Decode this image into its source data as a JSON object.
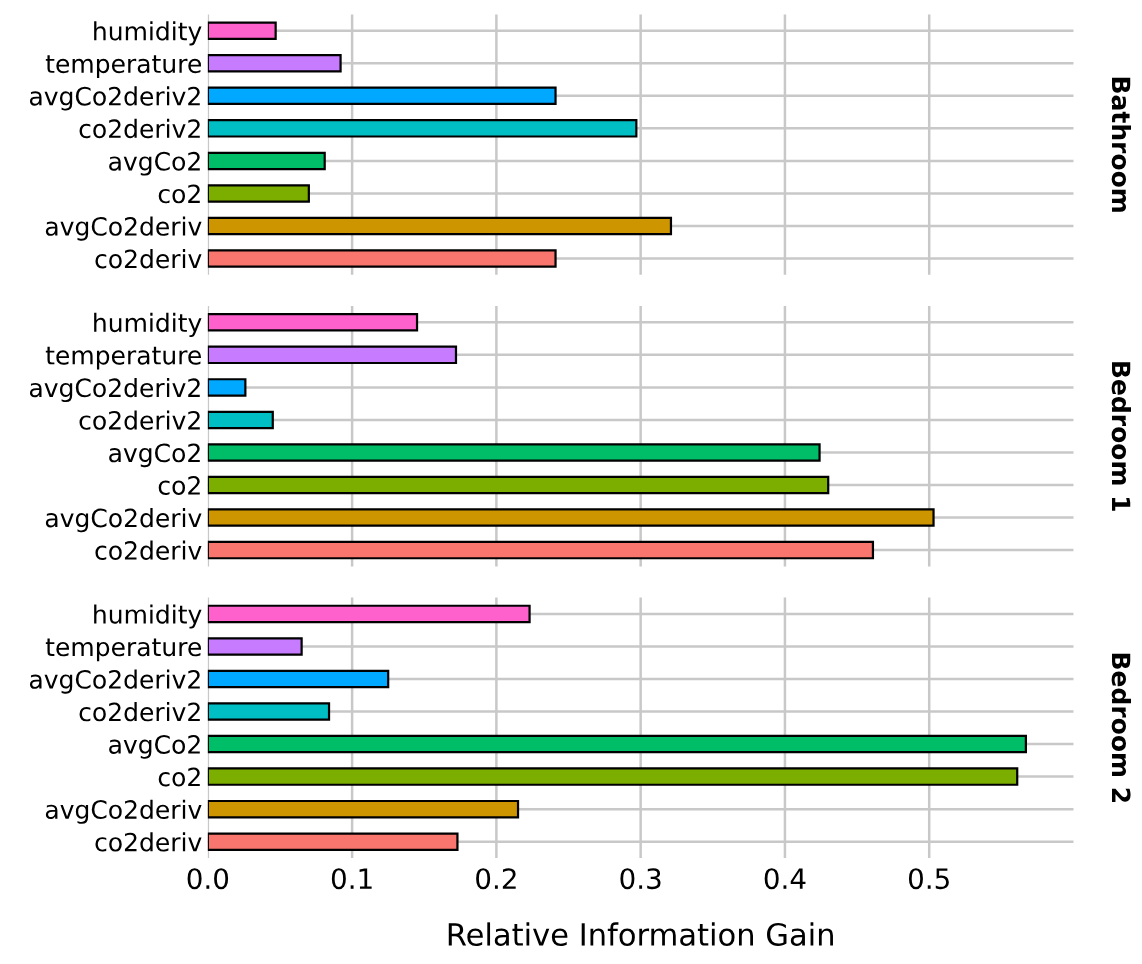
{
  "chart_data": [
    {
      "type": "bar",
      "orientation": "horizontal",
      "y2label": "Bathroom",
      "categories": [
        "humidity",
        "temperature",
        "avgCo2deriv2",
        "co2deriv2",
        "avgCo2",
        "co2",
        "avgCo2deriv",
        "co2deriv"
      ],
      "values": [
        0.047,
        0.092,
        0.241,
        0.297,
        0.081,
        0.07,
        0.321,
        0.241
      ],
      "colors": [
        "#ff61cc",
        "#c77cff",
        "#00a9ff",
        "#00bfc4",
        "#00be67",
        "#7cae00",
        "#cd9600",
        "#f8766d"
      ],
      "xlim": [
        0,
        0.6
      ],
      "xticks": [
        0.0,
        0.1,
        0.2,
        0.3,
        0.4,
        0.5
      ],
      "tick_labels": "y",
      "grid": true
    },
    {
      "type": "bar",
      "orientation": "horizontal",
      "y2label": "Bedroom 1",
      "categories": [
        "humidity",
        "temperature",
        "avgCo2deriv2",
        "co2deriv2",
        "avgCo2",
        "co2",
        "avgCo2deriv",
        "co2deriv"
      ],
      "values": [
        0.145,
        0.172,
        0.026,
        0.045,
        0.424,
        0.43,
        0.503,
        0.461
      ],
      "colors": [
        "#ff61cc",
        "#c77cff",
        "#00a9ff",
        "#00bfc4",
        "#00be67",
        "#7cae00",
        "#cd9600",
        "#f8766d"
      ],
      "xlim": [
        0,
        0.6
      ],
      "xticks": [
        0.0,
        0.1,
        0.2,
        0.3,
        0.4,
        0.5
      ],
      "tick_labels": "y",
      "grid": true
    },
    {
      "type": "bar",
      "orientation": "horizontal",
      "y2label": "Bedroom 2",
      "xlabel": "Relative Information Gain",
      "categories": [
        "humidity",
        "temperature",
        "avgCo2deriv2",
        "co2deriv2",
        "avgCo2",
        "co2",
        "avgCo2deriv",
        "co2deriv"
      ],
      "values": [
        0.223,
        0.065,
        0.125,
        0.084,
        0.567,
        0.561,
        0.215,
        0.173
      ],
      "colors": [
        "#ff61cc",
        "#c77cff",
        "#00a9ff",
        "#00bfc4",
        "#00be67",
        "#7cae00",
        "#cd9600",
        "#f8766d"
      ],
      "xlim": [
        0,
        0.6
      ],
      "xticks": [
        {
          "value": 0,
          "label": "0.0"
        },
        0.1,
        0.2,
        0.3,
        0.4,
        0.5
      ],
      "grid": true
    }
  ]
}
